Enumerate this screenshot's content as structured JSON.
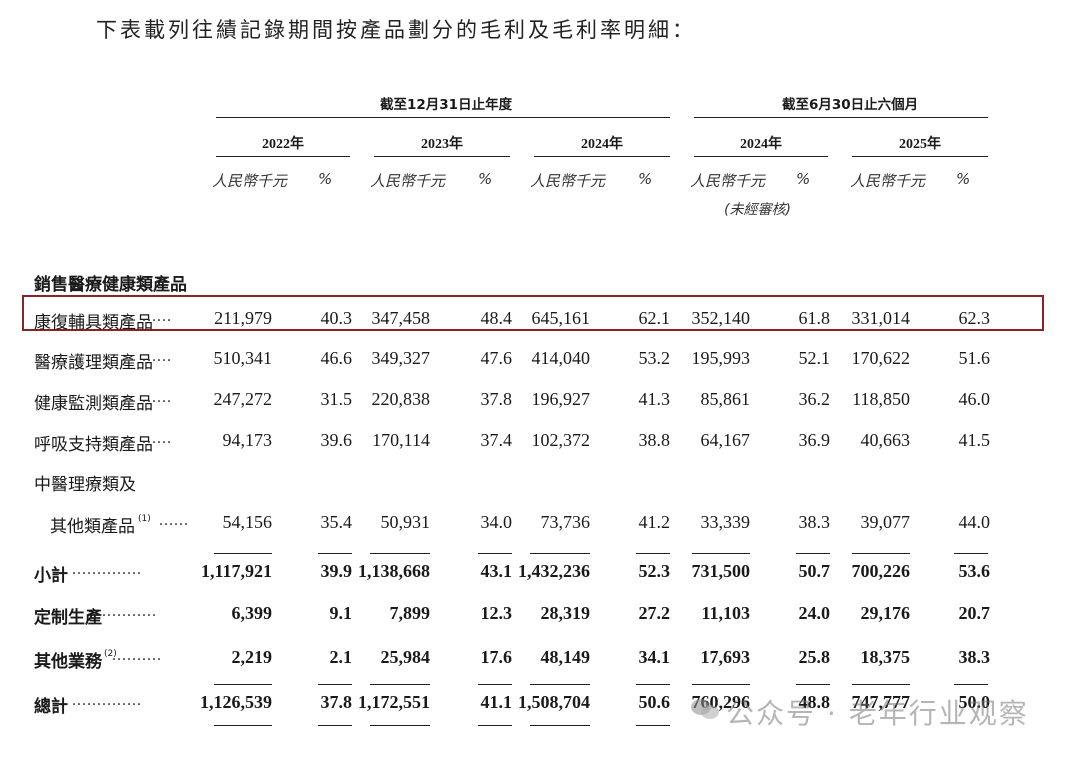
{
  "intro": "下表載列往績記錄期間按產品劃分的毛利及毛利率明細：",
  "groups": {
    "annual": "截至12月31日止年度",
    "half": "截至6月30日止六個月"
  },
  "years": [
    "2022年",
    "2023年",
    "2024年",
    "2024年",
    "2025年"
  ],
  "units": {
    "rmb": "人民幣千元",
    "pct": "%"
  },
  "unaudited": "(未經審核)",
  "section_head": "銷售醫療健康類產品",
  "rows": [
    {
      "label": "康復輔具類產品",
      "dots": "......",
      "values": [
        "211,979",
        "40.3",
        "347,458",
        "48.4",
        "645,161",
        "62.1",
        "352,140",
        "61.8",
        "331,014",
        "62.3"
      ]
    },
    {
      "label": "醫療護理類產品",
      "dots": "......",
      "values": [
        "510,341",
        "46.6",
        "349,327",
        "47.6",
        "414,040",
        "53.2",
        "195,993",
        "52.1",
        "170,622",
        "51.6"
      ]
    },
    {
      "label": "健康監測類產品",
      "dots": "......",
      "values": [
        "247,272",
        "31.5",
        "220,838",
        "37.8",
        "196,927",
        "41.3",
        "85,861",
        "36.2",
        "118,850",
        "46.0"
      ]
    },
    {
      "label": "呼吸支持類產品",
      "dots": "......",
      "values": [
        "94,173",
        "39.6",
        "170,114",
        "37.4",
        "102,372",
        "38.8",
        "64,167",
        "36.9",
        "40,663",
        "41.5"
      ]
    },
    {
      "label": "中醫理療類及",
      "dots": "",
      "values": [
        "",
        "",
        "",
        "",
        "",
        "",
        "",
        "",
        "",
        ""
      ]
    },
    {
      "label": "其他類產品",
      "sup": "(1)",
      "dots": "......",
      "values": [
        "54,156",
        "35.4",
        "50,931",
        "34.0",
        "73,736",
        "41.2",
        "33,339",
        "38.3",
        "39,077",
        "44.0"
      ]
    },
    {
      "label": "小計",
      "dots": "..............",
      "values": [
        "1,117,921",
        "39.9",
        "1,138,668",
        "43.1",
        "1,432,236",
        "52.3",
        "731,500",
        "50.7",
        "700,226",
        "53.6"
      ]
    },
    {
      "label": "定制生產",
      "dots": "...........",
      "values": [
        "6,399",
        "9.1",
        "7,899",
        "12.3",
        "28,319",
        "27.2",
        "11,103",
        "24.0",
        "29,176",
        "20.7"
      ]
    },
    {
      "label": "其他業務",
      "sup": "(2)",
      "dots": "..........",
      "values": [
        "2,219",
        "2.1",
        "25,984",
        "17.6",
        "48,149",
        "34.1",
        "17,693",
        "25.8",
        "18,375",
        "38.3"
      ]
    },
    {
      "label": "總計",
      "dots": "..............",
      "values": [
        "1,126,539",
        "37.8",
        "1,172,551",
        "41.1",
        "1,508,704",
        "50.6",
        "760,296",
        "48.8",
        "747,777",
        "50.0"
      ]
    }
  ],
  "watermark": "公众号 · 老年行业观察",
  "colors": {
    "highlight_box": "#8b2226",
    "text": "#1a1a1a"
  }
}
